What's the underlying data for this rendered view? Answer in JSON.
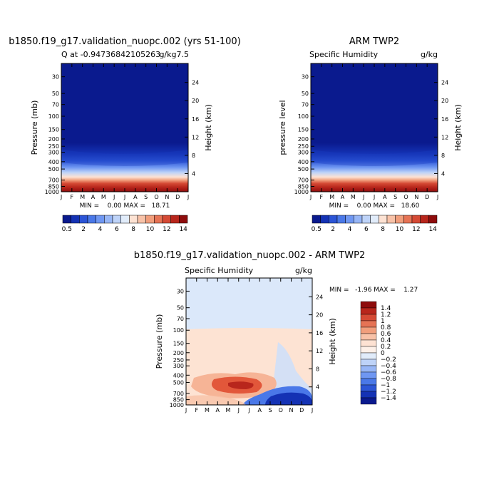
{
  "chart_data": [
    {
      "type": "heatmap",
      "title": "b1850.f19_g17.validation_nuopc.002 (yrs 51-100)",
      "subtitle_left": "Q at -0.94736842105263",
      "subtitle_right": "g/kg7.5",
      "ylabel": "Pressure (mb)",
      "ylabel_right": "Height (km)",
      "x_ticks": [
        "J",
        "F",
        "M",
        "A",
        "M",
        "J",
        "J",
        "A",
        "S",
        "O",
        "N",
        "D",
        "J"
      ],
      "y_ticks": [
        "30",
        "50",
        "70",
        "100",
        "150",
        "200",
        "250",
        "300",
        "400",
        "500",
        "700",
        "850",
        "1000"
      ],
      "y_ticks_right": [
        "24",
        "20",
        "16",
        "12",
        "8",
        "4"
      ],
      "ylim": [
        1000,
        20
      ],
      "min_max_text": "MIN =    0.00 MAX =   18.71",
      "colorbar": {
        "orientation": "horizontal",
        "labels": [
          "0.5",
          "2",
          "4",
          "6",
          "8",
          "10",
          "12",
          "14"
        ],
        "colors": [
          "#0a1a8e",
          "#1432b4",
          "#2c55d6",
          "#4a78e8",
          "#6f97f2",
          "#97b6f6",
          "#bed3f8",
          "#e1ecfa",
          "#fde2d3",
          "#f8c2a8",
          "#f19e7c",
          "#e67355",
          "#d54a35",
          "#b8261c",
          "#8e0c0c"
        ]
      },
      "series": [
        {
          "profile_p": [
            30,
            70,
            200,
            260,
            300,
            400,
            500,
            600,
            700,
            800,
            850,
            900,
            950,
            1000
          ],
          "profile_q": [
            0.1,
            0.2,
            0.3,
            0.5,
            1.0,
            2.0,
            3.5,
            5.0,
            7.0,
            10.0,
            12.5,
            14.5,
            16.0,
            18.0
          ]
        }
      ]
    },
    {
      "type": "heatmap",
      "title": "ARM TWP2",
      "subtitle_left": "Specific Humidity",
      "subtitle_right": "g/kg",
      "ylabel": "pressure level",
      "ylabel_right": "Height (km)",
      "x_ticks": [
        "J",
        "F",
        "M",
        "A",
        "M",
        "J",
        "J",
        "A",
        "S",
        "O",
        "N",
        "D",
        "J"
      ],
      "y_ticks": [
        "30",
        "50",
        "70",
        "100",
        "150",
        "200",
        "250",
        "300",
        "400",
        "500",
        "700",
        "850",
        "1000"
      ],
      "y_ticks_right": [
        "24",
        "20",
        "16",
        "12",
        "8",
        "4"
      ],
      "ylim": [
        1000,
        20
      ],
      "min_max_text": "MIN =    0.00 MAX =   18.60",
      "colorbar": {
        "orientation": "horizontal",
        "labels": [
          "0.5",
          "2",
          "4",
          "6",
          "8",
          "10",
          "12",
          "14"
        ],
        "colors": [
          "#0a1a8e",
          "#1432b4",
          "#2c55d6",
          "#4a78e8",
          "#6f97f2",
          "#97b6f6",
          "#bed3f8",
          "#e1ecfa",
          "#fde2d3",
          "#f8c2a8",
          "#f19e7c",
          "#e67355",
          "#d54a35",
          "#b8261c",
          "#8e0c0c"
        ]
      },
      "series": [
        {
          "profile_p": [
            30,
            70,
            200,
            260,
            300,
            400,
            500,
            600,
            700,
            800,
            850,
            900,
            950,
            1000
          ],
          "profile_q": [
            0.1,
            0.2,
            0.3,
            0.5,
            1.0,
            2.0,
            3.5,
            5.0,
            7.0,
            10.0,
            12.5,
            14.5,
            16.0,
            18.0
          ]
        }
      ]
    },
    {
      "type": "heatmap",
      "title": "b1850.f19_g17.validation_nuopc.002 - ARM TWP2",
      "subtitle_left": "Specific Humidity",
      "subtitle_right": "g/kg",
      "ylabel": "Pressure (mb)",
      "ylabel_right": "Height (km)",
      "x_ticks": [
        "J",
        "F",
        "M",
        "A",
        "M",
        "J",
        "J",
        "A",
        "S",
        "O",
        "N",
        "D",
        "J"
      ],
      "y_ticks": [
        "30",
        "50",
        "70",
        "100",
        "150",
        "200",
        "250",
        "300",
        "400",
        "500",
        "700",
        "850",
        "1000"
      ],
      "y_ticks_right": [
        "24",
        "20",
        "16",
        "12",
        "8",
        "4"
      ],
      "ylim": [
        1000,
        20
      ],
      "min_max_text": "MIN =   -1.96 MAX =    1.27",
      "colorbar": {
        "orientation": "vertical",
        "labels": [
          "1.4",
          "1.2",
          "1",
          "0.8",
          "0.6",
          "0.4",
          "0.2",
          "0",
          "−0.2",
          "−0.4",
          "−0.6",
          "−0.8",
          "−1",
          "−1.2",
          "−1.4"
        ],
        "colors": [
          "#8e0c0c",
          "#b8261c",
          "#d54a35",
          "#e67355",
          "#f19e7c",
          "#f8c2a8",
          "#fde2d3",
          "#fdf0e8",
          "#e1ecfa",
          "#bed3f8",
          "#97b6f6",
          "#6f97f2",
          "#4a78e8",
          "#2c55d6",
          "#1432b4",
          "#0a1a8e"
        ]
      },
      "regions": [
        {
          "desc": "upper light blue",
          "p_range": [
            20,
            115
          ],
          "value": -0.1
        },
        {
          "desc": "mid light orange",
          "p_range": [
            115,
            420
          ],
          "value": 0.1
        },
        {
          "desc": "red anomaly",
          "p_range": [
            440,
            700
          ],
          "months": [
            1,
            8
          ],
          "value": 0.9
        },
        {
          "desc": "blue anomaly",
          "p_range": [
            700,
            1000
          ],
          "months": [
            8,
            12
          ],
          "value": -1.4
        }
      ]
    }
  ]
}
